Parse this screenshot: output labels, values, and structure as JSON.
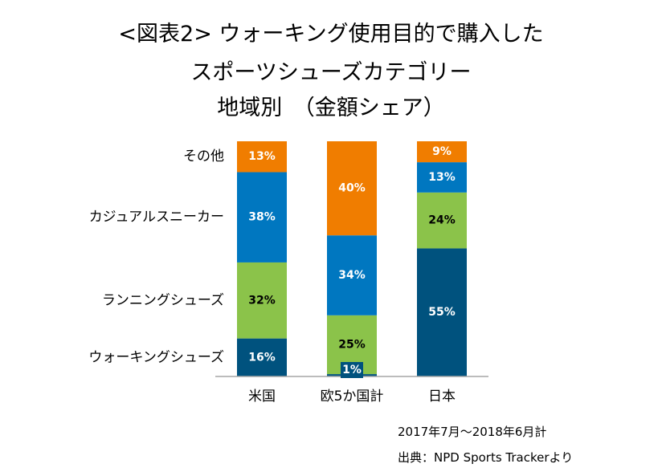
{
  "title_lines": [
    "<図表2> ウォーキング使用目的で購入した",
    "スポーツシューズカテゴリー",
    "地域別　（金額シェア）"
  ],
  "notes": {
    "period": "2017年7月～2018年6月計",
    "source": "出典：NPD Sports Trackerより"
  },
  "chart_data": {
    "type": "bar",
    "stacked": true,
    "unit": "%",
    "categories": [
      "米国",
      "欧5か国計",
      "日本"
    ],
    "series": [
      {
        "name": "ウォーキングシューズ",
        "values": [
          16,
          1,
          55
        ],
        "color": "#00527e",
        "label_color": "#ffffff"
      },
      {
        "name": "ランニングシューズ",
        "values": [
          32,
          25,
          24
        ],
        "color": "#8bc34a",
        "label_color": "#000000"
      },
      {
        "name": "カジュアルスニーカー",
        "values": [
          38,
          34,
          13
        ],
        "color": "#0077c0",
        "label_color": "#ffffff"
      },
      {
        "name": "その他",
        "values": [
          13,
          40,
          9
        ],
        "color": "#f07d00",
        "label_color": "#ffffff"
      }
    ],
    "data_labels": [
      [
        "16%",
        "1%",
        "55%"
      ],
      [
        "32%",
        "25%",
        "24%"
      ],
      [
        "38%",
        "34%",
        "13%"
      ],
      [
        "13%",
        "40%",
        "9%"
      ]
    ],
    "ylim": [
      0,
      100
    ],
    "legend": "left"
  }
}
